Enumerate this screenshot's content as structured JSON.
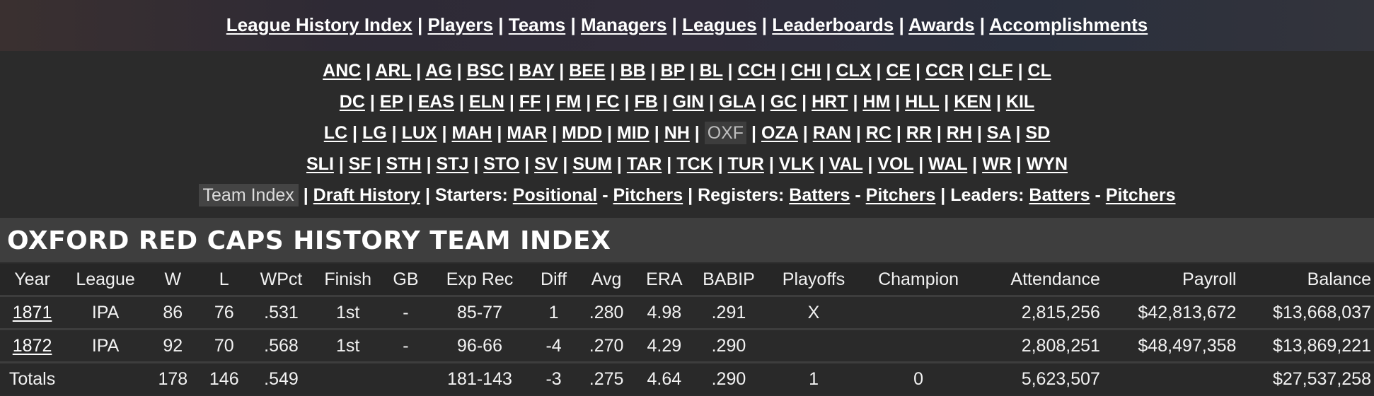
{
  "top_nav": [
    "League History Index",
    "Players",
    "Teams",
    "Managers",
    "Leagues",
    "Leaderboards",
    "Awards",
    "Accomplishments"
  ],
  "team_nav_rows": [
    [
      "ANC",
      "ARL",
      "AG",
      "BSC",
      "BAY",
      "BEE",
      "BB",
      "BP",
      "BL",
      "CCH",
      "CHI",
      "CLX",
      "CE",
      "CCR",
      "CLF",
      "CL"
    ],
    [
      "DC",
      "EP",
      "EAS",
      "ELN",
      "FF",
      "FM",
      "FC",
      "FB",
      "GIN",
      "GLA",
      "GC",
      "HRT",
      "HM",
      "HLL",
      "KEN",
      "KIL"
    ],
    [
      "LC",
      "LG",
      "LUX",
      "MAH",
      "MAR",
      "MDD",
      "MID",
      "NH",
      "OXF",
      "OZA",
      "RAN",
      "RC",
      "RR",
      "RH",
      "SA",
      "SD"
    ],
    [
      "SLI",
      "SF",
      "STH",
      "STJ",
      "STO",
      "SV",
      "SUM",
      "TAR",
      "TCK",
      "TUR",
      "VLK",
      "VAL",
      "VOL",
      "WAL",
      "WR",
      "WYN"
    ]
  ],
  "current_team": "OXF",
  "sub_nav": {
    "team_index": "Team Index",
    "draft_history": "Draft History",
    "starters_label": "Starters:",
    "positional": "Positional",
    "starters_pitchers": "Pitchers",
    "registers_label": "Registers:",
    "registers_batters": "Batters",
    "registers_pitchers": "Pitchers",
    "leaders_label": "Leaders:",
    "leaders_batters": "Batters",
    "leaders_pitchers": "Pitchers",
    "sep": "|",
    "dash": "-"
  },
  "title": "OXFORD RED CAPS HISTORY TEAM INDEX",
  "columns": [
    "Year",
    "League",
    "W",
    "L",
    "WPct",
    "Finish",
    "GB",
    "Exp Rec",
    "Diff",
    "Avg",
    "ERA",
    "BABIP",
    "Playoffs",
    "Champion",
    "Attendance",
    "Payroll",
    "Balance"
  ],
  "rows": [
    {
      "year": "1871",
      "league": "IPA",
      "w": "86",
      "l": "76",
      "wpct": ".531",
      "finish": "1st",
      "gb": "-",
      "exp_rec": "85-77",
      "diff": "1",
      "avg": ".280",
      "era": "4.98",
      "babip": ".291",
      "playoffs": "X",
      "champion": "",
      "attendance": "2,815,256",
      "payroll": "$42,813,672",
      "balance": "$13,668,037"
    },
    {
      "year": "1872",
      "league": "IPA",
      "w": "92",
      "l": "70",
      "wpct": ".568",
      "finish": "1st",
      "gb": "-",
      "exp_rec": "96-66",
      "diff": "-4",
      "avg": ".270",
      "era": "4.29",
      "babip": ".290",
      "playoffs": "",
      "champion": "",
      "attendance": "2,808,251",
      "payroll": "$48,497,358",
      "balance": "$13,869,221"
    }
  ],
  "totals": {
    "label": "Totals",
    "w": "178",
    "l": "146",
    "wpct": ".549",
    "exp_rec": "181-143",
    "diff": "-3",
    "avg": ".275",
    "era": "4.64",
    "babip": ".290",
    "playoffs": "1",
    "champion": "0",
    "attendance": "5,623,507",
    "balance": "$27,537,258"
  }
}
